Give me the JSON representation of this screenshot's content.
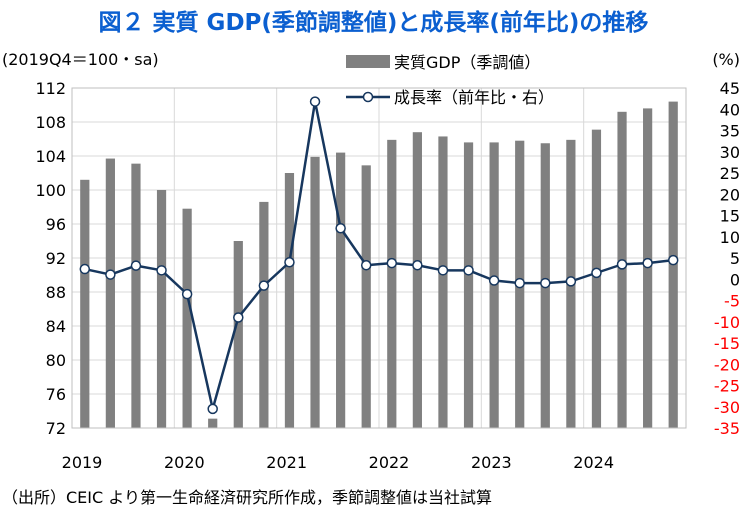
{
  "title": "図２ 実質 GDP(季節調整値)と成長率(前年比)の推移",
  "source": "（出所）CEIC より第一生命経済研究所作成，季節調整値は当社試算",
  "colors": {
    "title": "#0b5fd0",
    "bar": "#808080",
    "line": "#17375e",
    "negative_tick": "#ff0000",
    "grid": "#d9d9d9"
  },
  "chart_data": {
    "type": "bar+line",
    "left_axis_label": "(2019Q4＝100・sa)",
    "right_axis_label": "(%)",
    "ylim_left": [
      72,
      112
    ],
    "ylim_right": [
      -35,
      45
    ],
    "left_ticks": [
      72,
      76,
      80,
      84,
      88,
      92,
      96,
      100,
      104,
      108,
      112
    ],
    "right_ticks": [
      -35,
      -30,
      -25,
      -20,
      -15,
      -10,
      -5,
      0,
      5,
      10,
      15,
      20,
      25,
      30,
      35,
      40,
      45
    ],
    "year_labels": [
      "2019",
      "2020",
      "2021",
      "2022",
      "2023",
      "2024"
    ],
    "quarters": [
      "2019Q1",
      "2019Q2",
      "2019Q3",
      "2019Q4",
      "2020Q1",
      "2020Q2",
      "2020Q3",
      "2020Q4",
      "2021Q1",
      "2021Q2",
      "2021Q3",
      "2021Q4",
      "2022Q1",
      "2022Q2",
      "2022Q3",
      "2022Q4",
      "2023Q1",
      "2023Q2",
      "2023Q3",
      "2023Q4",
      "2024Q1",
      "2024Q2",
      "2024Q3",
      "2024Q4"
    ],
    "series": [
      {
        "name": "実質GDP（季調値）",
        "axis": "left",
        "type": "bar",
        "values": [
          101.2,
          103.7,
          103.1,
          100.0,
          97.8,
          73.1,
          94.0,
          98.6,
          102.0,
          103.9,
          104.4,
          102.9,
          105.9,
          106.8,
          106.3,
          105.6,
          105.6,
          105.8,
          105.5,
          105.9,
          107.1,
          109.2,
          109.6,
          110.4
        ]
      },
      {
        "name": "成長率（前年比・右）",
        "axis": "right",
        "type": "line",
        "values": [
          2.4,
          1.1,
          3.2,
          2.1,
          -3.5,
          -30.5,
          -9.0,
          -1.5,
          4.0,
          41.8,
          12.0,
          3.3,
          3.8,
          3.3,
          2.1,
          2.1,
          -0.3,
          -0.9,
          -0.9,
          -0.5,
          1.5,
          3.5,
          3.8,
          4.5
        ]
      }
    ]
  }
}
